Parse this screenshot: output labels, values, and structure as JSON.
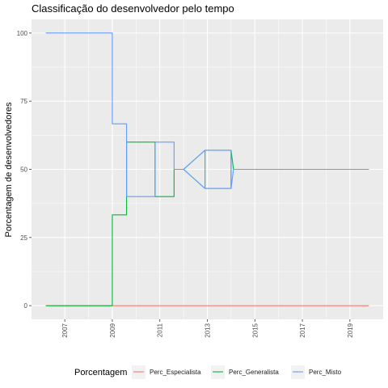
{
  "chart_data": {
    "type": "line",
    "title": "Classificação do desenvolvedor pelo tempo",
    "xlabel": "",
    "ylabel": "Porcentagem de desenvolvedores",
    "xlim": [
      2005.6,
      2020.4
    ],
    "ylim": [
      -5,
      105
    ],
    "x_ticks": [
      2007,
      2009,
      2011,
      2013,
      2015,
      2017,
      2019
    ],
    "x_tick_labels": [
      "2007",
      "2009",
      "2011",
      "2013",
      "2015",
      "2017",
      "2019"
    ],
    "y_ticks": [
      0,
      25,
      50,
      75,
      100
    ],
    "y_tick_labels": [
      "0",
      "25",
      "50",
      "75",
      "100"
    ],
    "grid": true,
    "legend": {
      "title": "Porcentagem",
      "position": "bottom"
    },
    "series": [
      {
        "name": "Perc_Especialista",
        "color": "#F8766D",
        "points": [
          [
            2006.2,
            0
          ],
          [
            2009.0,
            0
          ],
          [
            2009.0,
            0
          ],
          [
            2011.5,
            0
          ],
          [
            2013.0,
            0
          ],
          [
            2015.0,
            0
          ],
          [
            2017.0,
            0
          ],
          [
            2019.0,
            0
          ],
          [
            2019.8,
            0
          ]
        ]
      },
      {
        "name": "Perc_Generalista",
        "color": "#00BA38",
        "points": [
          [
            2006.2,
            0
          ],
          [
            2009.0,
            0
          ],
          [
            2009.0,
            33.3
          ],
          [
            2009.6,
            33.3
          ],
          [
            2009.6,
            60
          ],
          [
            2010.8,
            60
          ],
          [
            2010.8,
            40
          ],
          [
            2011.6,
            40
          ],
          [
            2011.6,
            50
          ],
          [
            2012.0,
            50
          ],
          [
            2012.9,
            43
          ],
          [
            2012.9,
            57
          ],
          [
            2014.0,
            57
          ],
          [
            2014.0,
            43
          ],
          [
            2013.0,
            43
          ],
          [
            2012.9,
            43
          ],
          [
            2012.0,
            50
          ],
          [
            2012.9,
            57
          ],
          [
            2014.0,
            57
          ],
          [
            2014.1,
            50
          ],
          [
            2016.0,
            50
          ],
          [
            2019.8,
            50
          ]
        ]
      },
      {
        "name": "Perc_Misto",
        "color": "#619CFF",
        "points": [
          [
            2006.2,
            100
          ],
          [
            2009.0,
            100
          ],
          [
            2009.0,
            66.7
          ],
          [
            2009.6,
            66.7
          ],
          [
            2009.6,
            40
          ],
          [
            2010.8,
            40
          ],
          [
            2010.8,
            60
          ],
          [
            2011.6,
            60
          ],
          [
            2011.6,
            50
          ],
          [
            2012.0,
            50
          ],
          [
            2012.9,
            57
          ],
          [
            2012.9,
            43
          ],
          [
            2014.0,
            43
          ],
          [
            2014.0,
            57
          ],
          [
            2013.0,
            57
          ],
          [
            2012.9,
            57
          ],
          [
            2012.0,
            50
          ],
          [
            2012.9,
            43
          ],
          [
            2014.0,
            43
          ],
          [
            2014.1,
            50
          ],
          [
            2016.0,
            50
          ],
          [
            2019.8,
            50
          ]
        ]
      }
    ]
  }
}
